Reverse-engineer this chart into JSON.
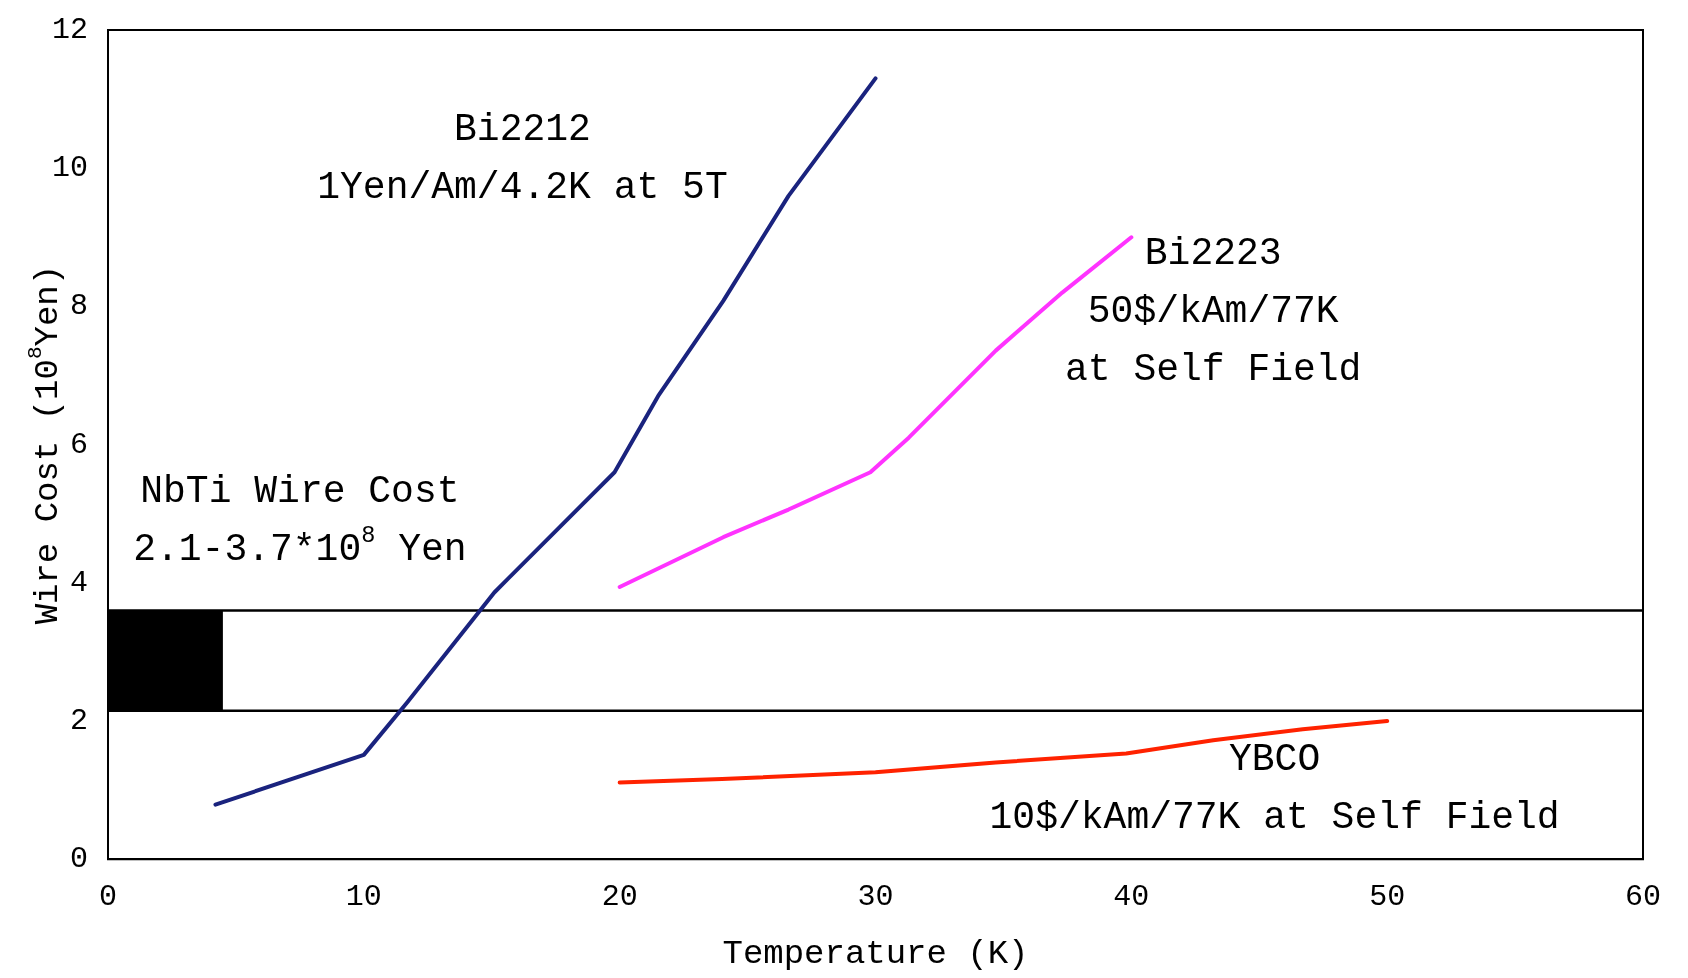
{
  "chart_data": {
    "type": "line",
    "xlabel": "Temperature (K)",
    "ylabel": "Wire Cost (10$^{8}$Yen)",
    "xlim": [
      0,
      60
    ],
    "xticks": [
      0,
      10,
      20,
      30,
      40,
      50,
      60
    ],
    "ylim": [
      0,
      12
    ],
    "yticks": [
      0,
      2,
      4,
      6,
      8,
      10,
      12
    ],
    "grid": false,
    "legend": false,
    "marker": "none",
    "line_style": "solid",
    "series": [
      {
        "color": "#1a237e",
        "x": [
          4.2,
          10,
          11.7,
          15.1,
          19.8,
          21.5,
          24.05,
          26.6,
          30
        ],
        "values": [
          0.79,
          1.51,
          2.27,
          3.86,
          5.6,
          6.7,
          8.08,
          9.6,
          11.3
        ]
      },
      {
        "color": "#ff33ff",
        "x": [
          20,
          24.05,
          26.6,
          29.8,
          31.3,
          34.7,
          37.3,
          40
        ],
        "values": [
          3.94,
          4.66,
          5.06,
          5.6,
          6.1,
          7.36,
          8.2,
          9.0
        ]
      },
      {
        "color": "#ff2200",
        "x": [
          20,
          24,
          30,
          34.7,
          39.8,
          43.2,
          46.7,
          50
        ],
        "values": [
          1.11,
          1.16,
          1.26,
          1.4,
          1.53,
          1.72,
          1.88,
          2.0
        ]
      },
      {
        "type": "bar",
        "color": "#000000",
        "x": [
          2.25
        ],
        "values": [
          1.45
        ],
        "base": [
          2.15
        ]
      }
    ],
    "ref_lines": [
      {
        "axis": "y",
        "value": 3.6,
        "color": "#000000"
      },
      {
        "axis": "y",
        "value": 2.15,
        "color": "#000000"
      }
    ],
    "annotations": [
      "Bi2212\n1Yen/Am/4.2K at 5T",
      "Bi2223\n50$/kAm/77K\nat Self Field",
      "NbTi Wire Cost\n2.1-3.7*10$^{8}$ Yen",
      "YBCO\n10$/kAm/77K at Self Field"
    ]
  }
}
